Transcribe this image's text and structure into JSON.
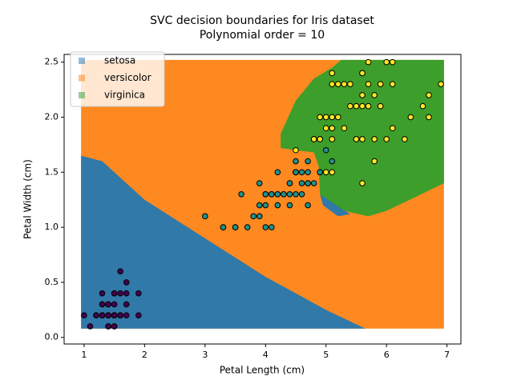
{
  "chart_data": {
    "type": "scatter",
    "title": "SVC decision boundaries for Iris dataset",
    "subtitle": "Polynomial order = 10",
    "x_label": "Petal Length (cm)",
    "y_label": "Petal Width (cm)",
    "xlim": [
      0.67,
      7.23
    ],
    "ylim": [
      -0.06,
      2.57
    ],
    "xticks": [
      1,
      2,
      3,
      4,
      5,
      6,
      7
    ],
    "yticks": [
      {
        "value": 0,
        "label": "0.0"
      },
      0.5,
      {
        "value": 1,
        "label": "1.0"
      },
      1.5,
      {
        "value": 2,
        "label": "2.0"
      },
      2.5
    ],
    "legend": "upper left",
    "background_region": {
      "color": "#ff7f0e",
      "x": [
        0.95,
        6.95,
        6.95,
        0.95
      ],
      "y": [
        0.08,
        0.08,
        2.52,
        2.52
      ]
    },
    "series": [
      {
        "name": "setosa",
        "color": "#1f77b4",
        "point_color": "#440154",
        "regions": [
          {
            "x": [
              0.95,
              1.3,
              2,
              3,
              4,
              5,
              5.65,
              0.95
            ],
            "y": [
              1.65,
              1.6,
              1.25,
              0.9,
              0.55,
              0.25,
              0.08,
              0.08
            ]
          },
          {
            "x": [
              4.9,
              5.05,
              5.4,
              5.2,
              4.95
            ],
            "y": [
              1.3,
              1.25,
              1.12,
              1.1,
              1.2
            ]
          }
        ],
        "x": [
          1.4,
          1.4,
          1.3,
          1.5,
          1.4,
          1.7,
          1.4,
          1.5,
          1.4,
          1.5,
          1.5,
          1.6,
          1.4,
          1.1,
          1.2,
          1.5,
          1.3,
          1.4,
          1.7,
          1.5,
          1.7,
          1.5,
          1.0,
          1.7,
          1.9,
          1.6,
          1.6,
          1.5,
          1.4,
          1.6,
          1.6,
          1.5,
          1.5,
          1.4,
          1.5,
          1.2,
          1.3,
          1.4,
          1.3,
          1.5,
          1.3,
          1.3,
          1.3,
          1.6,
          1.9,
          1.4,
          1.6,
          1.4,
          1.5,
          1.4
        ],
        "values": [
          0.2,
          0.2,
          0.2,
          0.2,
          0.2,
          0.4,
          0.3,
          0.2,
          0.2,
          0.1,
          0.2,
          0.2,
          0.1,
          0.1,
          0.2,
          0.4,
          0.4,
          0.3,
          0.3,
          0.3,
          0.2,
          0.4,
          0.2,
          0.5,
          0.2,
          0.2,
          0.4,
          0.2,
          0.2,
          0.2,
          0.2,
          0.4,
          0.1,
          0.2,
          0.2,
          0.2,
          0.2,
          0.1,
          0.2,
          0.2,
          0.3,
          0.3,
          0.2,
          0.6,
          0.4,
          0.3,
          0.2,
          0.2,
          0.2,
          0.2
        ]
      },
      {
        "name": "versicolor",
        "color": "#ff7f0e",
        "point_color": "#21918c",
        "regions": [],
        "x": [
          4.7,
          4.5,
          4.9,
          4.0,
          4.6,
          4.5,
          4.7,
          3.3,
          4.6,
          3.9,
          3.5,
          4.2,
          4.0,
          4.7,
          3.6,
          4.4,
          4.5,
          4.1,
          4.5,
          3.9,
          4.8,
          4.0,
          4.9,
          4.7,
          4.3,
          4.4,
          4.8,
          5.0,
          4.5,
          3.5,
          3.8,
          3.7,
          3.9,
          5.1,
          4.5,
          4.5,
          4.7,
          4.4,
          4.1,
          4.0,
          4.4,
          4.6,
          4.0,
          3.3,
          4.2,
          4.2,
          4.2,
          4.3,
          3.0,
          4.1
        ],
        "values": [
          1.4,
          1.5,
          1.5,
          1.3,
          1.5,
          1.3,
          1.6,
          1.0,
          1.3,
          1.4,
          1.0,
          1.5,
          1.0,
          1.4,
          1.3,
          1.4,
          1.5,
          1.0,
          1.5,
          1.1,
          1.8,
          1.3,
          1.5,
          1.2,
          1.3,
          1.4,
          1.4,
          1.7,
          1.5,
          1.0,
          1.1,
          1.0,
          1.2,
          1.6,
          1.5,
          1.6,
          1.5,
          1.3,
          1.3,
          1.3,
          1.2,
          1.4,
          1.2,
          1.0,
          1.3,
          1.2,
          1.3,
          1.3,
          1.1,
          1.3
        ]
      },
      {
        "name": "virginica",
        "color": "#2ca02c",
        "point_color": "#fde725",
        "regions": [
          {
            "x": [
              5.25,
              6.95,
              6.95,
              6.5,
              6.0,
              5.7,
              5.3,
              4.9,
              4.88,
              4.8,
              4.5,
              4.25,
              4.25,
              4.5,
              4.8,
              5.1
            ],
            "y": [
              2.52,
              2.52,
              1.4,
              1.28,
              1.15,
              1.1,
              1.15,
              1.3,
              1.55,
              1.68,
              1.7,
              1.72,
              1.85,
              2.15,
              2.35,
              2.45
            ]
          }
        ],
        "x": [
          6.0,
          5.1,
          5.9,
          5.6,
          5.8,
          6.6,
          4.5,
          6.3,
          5.8,
          6.1,
          5.1,
          5.3,
          5.5,
          5.0,
          5.1,
          5.3,
          5.5,
          6.7,
          6.9,
          5.0,
          5.7,
          4.9,
          6.7,
          4.9,
          5.7,
          6.0,
          4.8,
          4.9,
          5.6,
          5.8,
          6.1,
          6.4,
          5.6,
          5.1,
          5.6,
          6.1,
          5.6,
          5.5,
          4.8,
          5.4,
          5.6,
          5.1,
          5.1,
          5.9,
          5.7,
          5.2,
          5.0,
          5.2,
          5.4,
          5.1
        ],
        "values": [
          2.5,
          1.9,
          2.1,
          1.8,
          2.2,
          2.1,
          1.7,
          1.8,
          1.8,
          2.5,
          2.0,
          1.9,
          2.1,
          2.0,
          2.4,
          2.3,
          1.8,
          2.2,
          2.3,
          1.5,
          2.3,
          2.0,
          2.0,
          1.8,
          2.1,
          1.8,
          1.8,
          1.8,
          2.1,
          1.6,
          1.9,
          2.0,
          2.2,
          1.5,
          1.4,
          2.3,
          2.4,
          1.8,
          1.8,
          2.1,
          2.4,
          2.3,
          1.9,
          2.3,
          2.5,
          2.3,
          1.9,
          2.0,
          2.3,
          1.8
        ]
      }
    ]
  }
}
